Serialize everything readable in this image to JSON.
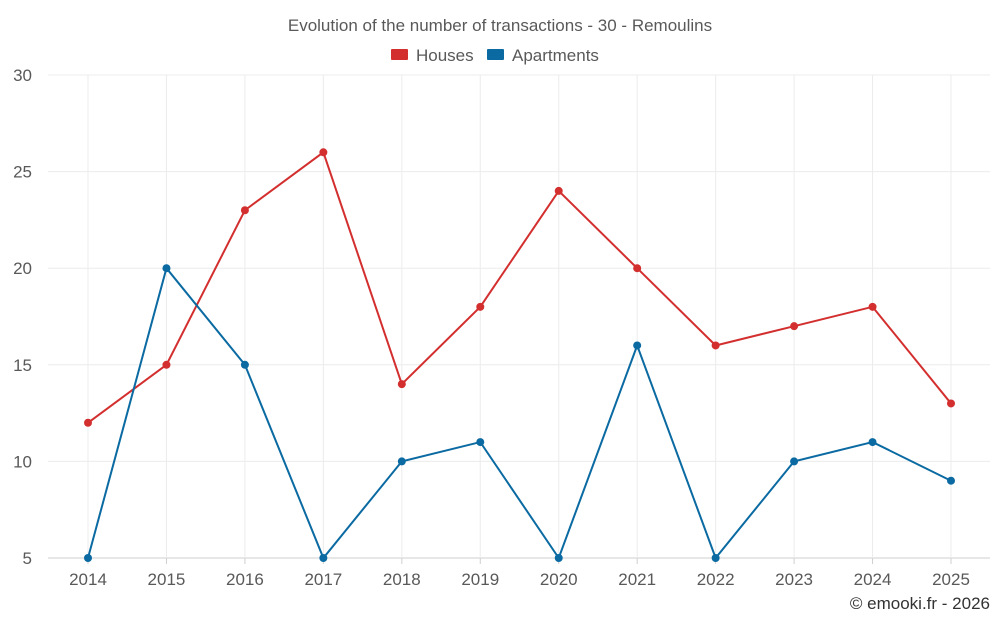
{
  "chart_data": {
    "type": "line",
    "title": "Evolution of the number of transactions - 30 - Remoulins",
    "categories": [
      "2014",
      "2015",
      "2016",
      "2017",
      "2018",
      "2019",
      "2020",
      "2021",
      "2022",
      "2023",
      "2024",
      "2025"
    ],
    "series": [
      {
        "name": "Houses",
        "color": "#d32f2f",
        "values": [
          12,
          15,
          23,
          26,
          14,
          18,
          24,
          20,
          16,
          17,
          18,
          13
        ]
      },
      {
        "name": "Apartments",
        "color": "#0a6aa1",
        "values": [
          5,
          20,
          15,
          5,
          10,
          11,
          5,
          16,
          5,
          10,
          11,
          9
        ]
      }
    ],
    "ylim": [
      5,
      30
    ],
    "yticks": [
      5,
      10,
      15,
      20,
      25,
      30
    ],
    "legend_position": "top-center",
    "grid": true,
    "credit": "© emooki.fr - 2026"
  }
}
